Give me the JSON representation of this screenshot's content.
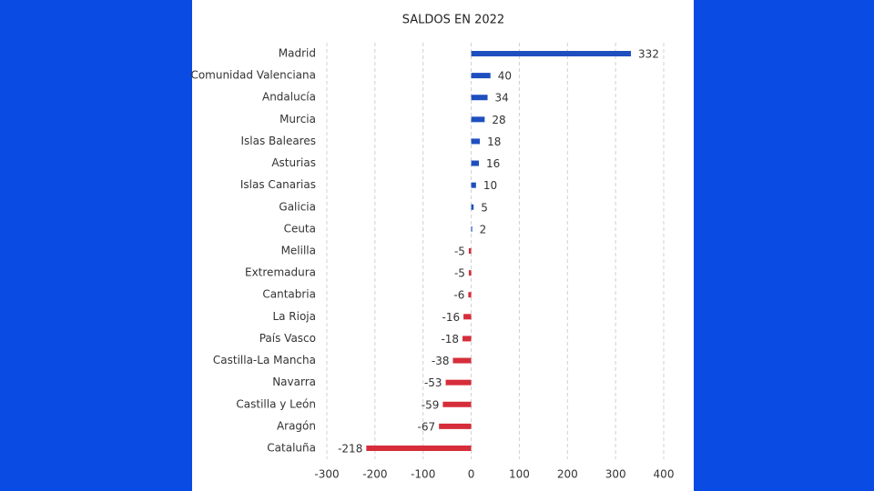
{
  "chart_data": {
    "type": "barh",
    "title": "SALDOS EN 2022",
    "categories": [
      "Madrid",
      "Comunidad Valenciana",
      "Andalucía",
      "Murcia",
      "Islas Baleares",
      "Asturias",
      "Islas Canarias",
      "Galicia",
      "Ceuta",
      "Melilla",
      "Extremadura",
      "Cantabria",
      "La Rioja",
      "País Vasco",
      "Castilla-La Mancha",
      "Navarra",
      "Castilla y León",
      "Aragón",
      "Cataluña"
    ],
    "values": [
      332,
      40,
      34,
      28,
      18,
      16,
      10,
      5,
      2,
      -5,
      -5,
      -6,
      -16,
      -18,
      -38,
      -53,
      -59,
      -67,
      -218
    ],
    "positive_color": "#1f4fbf",
    "negative_color": "#d62d3a",
    "xlim": [
      -300,
      400
    ],
    "xticks": [
      -300,
      -200,
      -100,
      0,
      100,
      200,
      300,
      400
    ],
    "grid": true
  }
}
